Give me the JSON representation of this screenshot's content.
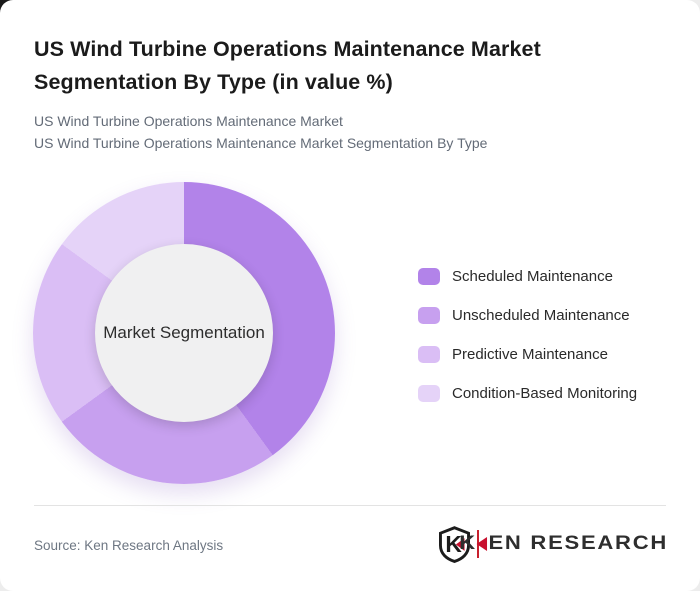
{
  "card": {
    "title": "US Wind Turbine Operations Maintenance Market Segmentation By Type (in value %)",
    "subtitle_line1": "US Wind Turbine Operations Maintenance Market",
    "subtitle_line2": "US Wind Turbine Operations Maintenance Market Segmentation By Type"
  },
  "chart_data": {
    "type": "pie",
    "subtype": "donut",
    "title": "US Wind Turbine Operations Maintenance Market Segmentation By Type (in value %)",
    "center_label": "Market Segmentation",
    "categories": [
      "Scheduled Maintenance",
      "Unscheduled Maintenance",
      "Predictive Maintenance",
      "Condition-Based Monitoring"
    ],
    "values": [
      40,
      25,
      20,
      15
    ],
    "unit": "% of market value",
    "colors": [
      "#b283e9",
      "#c7a0ef",
      "#dabef5",
      "#e5d3f8"
    ],
    "start_angle_deg": 0,
    "direction": "clockwise",
    "legend_position": "right",
    "hole_color": "#f0f0f1"
  },
  "footer": {
    "source": "Source: Ken Research Analysis",
    "logo": {
      "shield_letter": "K",
      "word_first_letter": "K",
      "word_rest": "EN RESEARCH",
      "accent_color": "#c8102e",
      "ink_color": "#1c1c1c"
    }
  }
}
